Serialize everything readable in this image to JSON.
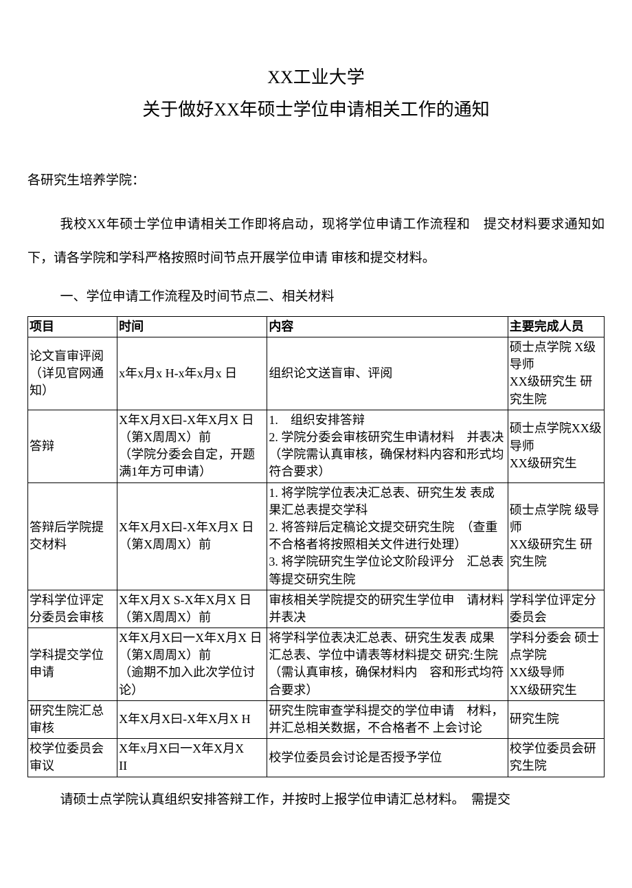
{
  "header": {
    "institution": "XX工业大学",
    "title": "关于做好XX年硕士学位申请相关工作的通知"
  },
  "salutation": "各研究生培养学院：",
  "intro": "我校XX年硕士学位申请相关工作即将启动，现将学位申请工作流程和　提交材料要求通知如下，请各学院和学科严格按照时间节点开展学位申请  审核和提交材料。",
  "section_heading": "一、学位申请工作流程及时间节点二、相关材料",
  "table": {
    "headers": {
      "col1": "项目",
      "col2": "时间",
      "col3": "内容",
      "col4": "主要完成人员"
    },
    "rows": [
      {
        "item": "论文盲审评阅（详见官网通知）",
        "time": "x年x月x  H-x年x月x  日",
        "content": "组织论文送盲审、评阅",
        "person": "硕士点学院 X级导师\nXX级研究生 研究生院"
      },
      {
        "item": "答辩",
        "time": "X年X月X曰-X年X月X 日（第X周周X）前\n（学院分委会自定，开题满1年方可申请）",
        "content": "1.　组织安排答辩\n2. 学院分委会审核研究生申请材料　并表决\n（学院需认真审核，确保材料内容和形式均符合要求）",
        "person": "硕士点学院XX级导师\nXX级研究生"
      },
      {
        "item": "答辩后学院提交材料",
        "time": "X年X月X曰-X年X月X 日（第X周周X）前",
        "content": "1. 将学院学位表决汇总表、研究生发 表成果汇总表提交学科\n2. 将答辩后定稿论文提交研究生院　（查重不合格者将按照相关文件进行处理）\n3. 将学院研究生学位论文阶段评分　汇总表等提交研究生院",
        "person": "硕士点学院 级导师\nXX级研究生 研究生院"
      },
      {
        "item": "学科学位评定分委员会审核",
        "time": "X年X月X S-X年X月X 日（第X周周X）前",
        "content": "审核相关学院提交的研究生学位申　请材料并表决",
        "person": "学科学位评定分委员会"
      },
      {
        "item": "学科提交学位申请",
        "time": "X年X月X曰一X年X月X 日（第X周周X）前\n（逾期不加入此次学位讨论）",
        "content": "将学科学位表决汇总表、研究生发表 成果汇总表、学位中请表等材料提交 研究:生院（需认真审核，确保材料内　容和形式均符合要求）",
        "person": "学科分委会 硕士点学院\nXX级导师\nXX级研究生"
      },
      {
        "item": "研究生院汇总审核",
        "time": "X年X月X曰-X年X月X H",
        "content": "研究生院审查学科提交的学位申请　材料，并汇总相关数据，不合格者不 上会讨论",
        "person": "研究生院"
      },
      {
        "item": "校学位委员会审议",
        "time": "X年x月X曰一X年X月X\nII",
        "content": "校学位委员会讨论是否授予学位",
        "person": "校学位委员会研究生院"
      }
    ]
  },
  "footer": "请硕士点学院认真组织安排答辩工作，并按时上报学位申请汇总材料。　需提交"
}
